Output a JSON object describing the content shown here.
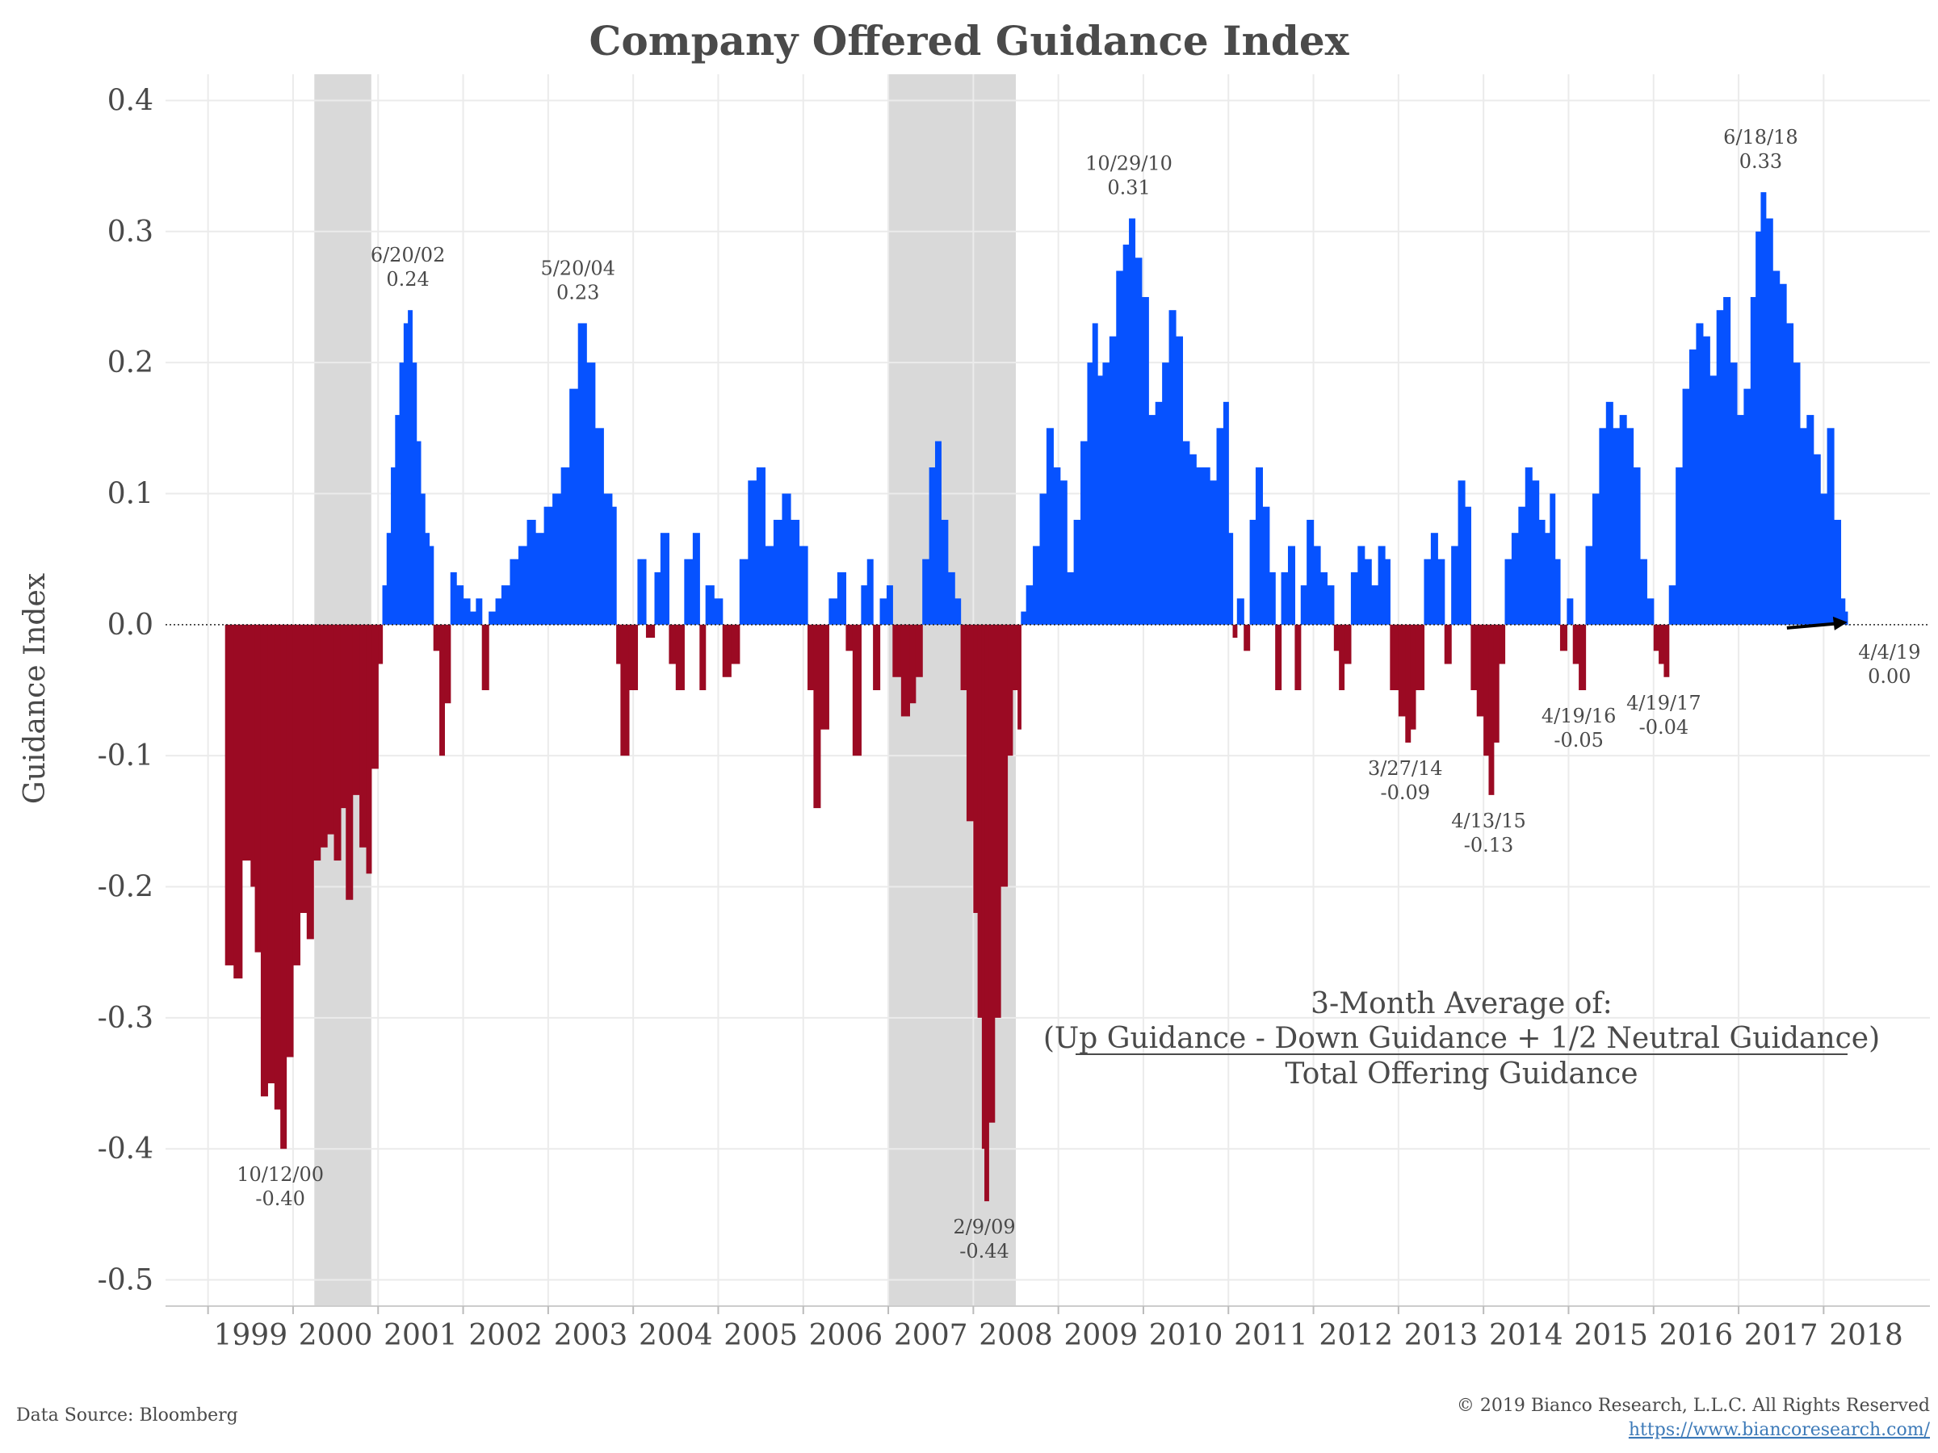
{
  "chart_data": {
    "type": "bar",
    "title": "Company Offered Guidance Index",
    "ylabel": "Guidance Index",
    "xlabel": "",
    "ylim": [
      -0.52,
      0.42
    ],
    "xlim": [
      1998.5,
      2019.25
    ],
    "yticks": [
      0.4,
      0.3,
      0.2,
      0.1,
      0.0,
      -0.1,
      -0.2,
      -0.3,
      -0.4,
      -0.5
    ],
    "ytick_labels": [
      "0.4",
      "0.3",
      "0.2",
      "0.1",
      "0.0",
      "-0.1",
      "-0.2",
      "-0.3",
      "-0.4",
      "-0.5"
    ],
    "xticks": [
      1999,
      2000,
      2001,
      2002,
      2003,
      2004,
      2005,
      2006,
      2007,
      2008,
      2009,
      2010,
      2011,
      2012,
      2013,
      2014,
      2015,
      2016,
      2017,
      2018
    ],
    "xtick_labels": [
      "1999",
      "2000",
      "2001",
      "2002",
      "2003",
      "2004",
      "2005",
      "2006",
      "2007",
      "2008",
      "2009",
      "2010",
      "2011",
      "2012",
      "2013",
      "2014",
      "2015",
      "2016",
      "2017",
      "2018"
    ],
    "grid": true,
    "zero_line": "dotted",
    "colors": {
      "positive": "#0652ff",
      "negative": "#9b0a23",
      "recession": "#d9d9d9"
    },
    "recessions": [
      [
        2000.25,
        2000.92
      ],
      [
        2007.0,
        2008.5
      ]
    ],
    "series": [
      {
        "values": [
          [
            1999.2,
            -0.26
          ],
          [
            1999.3,
            -0.27
          ],
          [
            1999.4,
            -0.18
          ],
          [
            1999.5,
            -0.2
          ],
          [
            1999.55,
            -0.25
          ],
          [
            1999.62,
            -0.36
          ],
          [
            1999.7,
            -0.35
          ],
          [
            1999.78,
            -0.37
          ],
          [
            1999.85,
            -0.4
          ],
          [
            1999.92,
            -0.33
          ],
          [
            2000.0,
            -0.26
          ],
          [
            2000.08,
            -0.22
          ],
          [
            2000.16,
            -0.24
          ],
          [
            2000.24,
            -0.18
          ],
          [
            2000.32,
            -0.17
          ],
          [
            2000.4,
            -0.16
          ],
          [
            2000.48,
            -0.18
          ],
          [
            2000.56,
            -0.14
          ],
          [
            2000.62,
            -0.21
          ],
          [
            2000.7,
            -0.13
          ],
          [
            2000.78,
            -0.17
          ],
          [
            2000.86,
            -0.19
          ],
          [
            2000.92,
            -0.11
          ],
          [
            2001.0,
            -0.03
          ],
          [
            2001.05,
            0.03
          ],
          [
            2001.1,
            0.07
          ],
          [
            2001.15,
            0.12
          ],
          [
            2001.2,
            0.16
          ],
          [
            2001.25,
            0.2
          ],
          [
            2001.3,
            0.23
          ],
          [
            2001.35,
            0.24
          ],
          [
            2001.4,
            0.2
          ],
          [
            2001.45,
            0.14
          ],
          [
            2001.5,
            0.1
          ],
          [
            2001.55,
            0.07
          ],
          [
            2001.6,
            0.06
          ],
          [
            2001.65,
            -0.02
          ],
          [
            2001.72,
            -0.1
          ],
          [
            2001.78,
            -0.06
          ],
          [
            2001.85,
            0.04
          ],
          [
            2001.92,
            0.03
          ],
          [
            2002.0,
            0.02
          ],
          [
            2002.08,
            0.01
          ],
          [
            2002.15,
            0.02
          ],
          [
            2002.22,
            -0.05
          ],
          [
            2002.3,
            0.01
          ],
          [
            2002.38,
            0.02
          ],
          [
            2002.45,
            0.03
          ],
          [
            2002.55,
            0.05
          ],
          [
            2002.65,
            0.06
          ],
          [
            2002.75,
            0.08
          ],
          [
            2002.85,
            0.07
          ],
          [
            2002.95,
            0.09
          ],
          [
            2003.05,
            0.1
          ],
          [
            2003.15,
            0.12
          ],
          [
            2003.25,
            0.18
          ],
          [
            2003.35,
            0.23
          ],
          [
            2003.45,
            0.2
          ],
          [
            2003.55,
            0.15
          ],
          [
            2003.65,
            0.1
          ],
          [
            2003.75,
            0.09
          ],
          [
            2003.8,
            -0.03
          ],
          [
            2003.85,
            -0.1
          ],
          [
            2003.95,
            -0.05
          ],
          [
            2004.05,
            0.05
          ],
          [
            2004.15,
            -0.01
          ],
          [
            2004.25,
            0.04
          ],
          [
            2004.32,
            0.07
          ],
          [
            2004.42,
            -0.03
          ],
          [
            2004.5,
            -0.05
          ],
          [
            2004.6,
            0.05
          ],
          [
            2004.7,
            0.07
          ],
          [
            2004.78,
            -0.05
          ],
          [
            2004.85,
            0.03
          ],
          [
            2004.95,
            0.02
          ],
          [
            2005.05,
            -0.04
          ],
          [
            2005.15,
            -0.03
          ],
          [
            2005.25,
            0.05
          ],
          [
            2005.35,
            0.11
          ],
          [
            2005.45,
            0.12
          ],
          [
            2005.55,
            0.06
          ],
          [
            2005.65,
            0.08
          ],
          [
            2005.75,
            0.1
          ],
          [
            2005.85,
            0.08
          ],
          [
            2005.95,
            0.06
          ],
          [
            2006.05,
            -0.05
          ],
          [
            2006.12,
            -0.14
          ],
          [
            2006.2,
            -0.08
          ],
          [
            2006.3,
            0.02
          ],
          [
            2006.4,
            0.04
          ],
          [
            2006.5,
            -0.02
          ],
          [
            2006.58,
            -0.1
          ],
          [
            2006.68,
            0.03
          ],
          [
            2006.75,
            0.05
          ],
          [
            2006.82,
            -0.05
          ],
          [
            2006.9,
            0.02
          ],
          [
            2006.98,
            0.03
          ],
          [
            2007.05,
            -0.04
          ],
          [
            2007.15,
            -0.07
          ],
          [
            2007.25,
            -0.06
          ],
          [
            2007.32,
            -0.04
          ],
          [
            2007.4,
            0.05
          ],
          [
            2007.48,
            0.12
          ],
          [
            2007.55,
            0.14
          ],
          [
            2007.62,
            0.08
          ],
          [
            2007.7,
            0.04
          ],
          [
            2007.78,
            0.02
          ],
          [
            2007.85,
            -0.05
          ],
          [
            2007.92,
            -0.15
          ],
          [
            2008.0,
            -0.22
          ],
          [
            2008.05,
            -0.3
          ],
          [
            2008.1,
            -0.4
          ],
          [
            2008.13,
            -0.44
          ],
          [
            2008.18,
            -0.38
          ],
          [
            2008.25,
            -0.3
          ],
          [
            2008.32,
            -0.2
          ],
          [
            2008.4,
            -0.1
          ],
          [
            2008.46,
            -0.05
          ],
          [
            2008.52,
            -0.08
          ],
          [
            2008.56,
            0.01
          ],
          [
            2008.62,
            0.03
          ],
          [
            2008.7,
            0.06
          ],
          [
            2008.78,
            0.1
          ],
          [
            2008.86,
            0.15
          ],
          [
            2008.94,
            0.12
          ],
          [
            2009.02,
            0.11
          ],
          [
            2009.1,
            0.04
          ],
          [
            2009.18,
            0.08
          ],
          [
            2009.26,
            0.14
          ],
          [
            2009.34,
            0.2
          ],
          [
            2009.4,
            0.23
          ],
          [
            2009.46,
            0.19
          ],
          [
            2009.52,
            0.2
          ],
          [
            2009.6,
            0.22
          ],
          [
            2009.68,
            0.27
          ],
          [
            2009.76,
            0.29
          ],
          [
            2009.83,
            0.31
          ],
          [
            2009.9,
            0.28
          ],
          [
            2009.98,
            0.25
          ],
          [
            2010.06,
            0.16
          ],
          [
            2010.14,
            0.17
          ],
          [
            2010.22,
            0.2
          ],
          [
            2010.3,
            0.24
          ],
          [
            2010.38,
            0.22
          ],
          [
            2010.46,
            0.14
          ],
          [
            2010.54,
            0.13
          ],
          [
            2010.62,
            0.12
          ],
          [
            2010.7,
            0.12
          ],
          [
            2010.78,
            0.11
          ],
          [
            2010.86,
            0.15
          ],
          [
            2010.94,
            0.17
          ],
          [
            2011.0,
            0.07
          ],
          [
            2011.05,
            -0.01
          ],
          [
            2011.1,
            0.02
          ],
          [
            2011.18,
            -0.02
          ],
          [
            2011.25,
            0.08
          ],
          [
            2011.32,
            0.12
          ],
          [
            2011.4,
            0.09
          ],
          [
            2011.48,
            0.04
          ],
          [
            2011.55,
            -0.05
          ],
          [
            2011.62,
            0.04
          ],
          [
            2011.7,
            0.06
          ],
          [
            2011.78,
            -0.05
          ],
          [
            2011.85,
            0.03
          ],
          [
            2011.92,
            0.08
          ],
          [
            2012.0,
            0.06
          ],
          [
            2012.08,
            0.04
          ],
          [
            2012.16,
            0.03
          ],
          [
            2012.24,
            -0.02
          ],
          [
            2012.3,
            -0.05
          ],
          [
            2012.36,
            -0.03
          ],
          [
            2012.44,
            0.04
          ],
          [
            2012.52,
            0.06
          ],
          [
            2012.6,
            0.05
          ],
          [
            2012.68,
            0.03
          ],
          [
            2012.76,
            0.06
          ],
          [
            2012.84,
            0.05
          ],
          [
            2012.9,
            -0.05
          ],
          [
            2013.0,
            -0.07
          ],
          [
            2013.08,
            -0.09
          ],
          [
            2013.14,
            -0.08
          ],
          [
            2013.2,
            -0.05
          ],
          [
            2013.3,
            0.05
          ],
          [
            2013.38,
            0.07
          ],
          [
            2013.46,
            0.05
          ],
          [
            2013.54,
            -0.03
          ],
          [
            2013.62,
            0.06
          ],
          [
            2013.7,
            0.11
          ],
          [
            2013.78,
            0.09
          ],
          [
            2013.85,
            -0.05
          ],
          [
            2013.92,
            -0.07
          ],
          [
            2014.0,
            -0.1
          ],
          [
            2014.06,
            -0.13
          ],
          [
            2014.12,
            -0.09
          ],
          [
            2014.18,
            -0.03
          ],
          [
            2014.25,
            0.05
          ],
          [
            2014.33,
            0.07
          ],
          [
            2014.41,
            0.09
          ],
          [
            2014.49,
            0.12
          ],
          [
            2014.57,
            0.11
          ],
          [
            2014.65,
            0.08
          ],
          [
            2014.72,
            0.07
          ],
          [
            2014.78,
            0.1
          ],
          [
            2014.84,
            0.05
          ],
          [
            2014.9,
            -0.02
          ],
          [
            2014.98,
            0.02
          ],
          [
            2015.05,
            -0.03
          ],
          [
            2015.12,
            -0.05
          ],
          [
            2015.2,
            0.06
          ],
          [
            2015.28,
            0.1
          ],
          [
            2015.36,
            0.15
          ],
          [
            2015.44,
            0.17
          ],
          [
            2015.52,
            0.15
          ],
          [
            2015.6,
            0.16
          ],
          [
            2015.68,
            0.15
          ],
          [
            2015.76,
            0.12
          ],
          [
            2015.84,
            0.05
          ],
          [
            2015.92,
            0.02
          ],
          [
            2016.0,
            -0.02
          ],
          [
            2016.06,
            -0.03
          ],
          [
            2016.12,
            -0.04
          ],
          [
            2016.18,
            0.03
          ],
          [
            2016.26,
            0.12
          ],
          [
            2016.34,
            0.18
          ],
          [
            2016.42,
            0.21
          ],
          [
            2016.5,
            0.23
          ],
          [
            2016.58,
            0.22
          ],
          [
            2016.66,
            0.19
          ],
          [
            2016.74,
            0.24
          ],
          [
            2016.82,
            0.25
          ],
          [
            2016.9,
            0.2
          ],
          [
            2016.98,
            0.16
          ],
          [
            2017.06,
            0.18
          ],
          [
            2017.14,
            0.25
          ],
          [
            2017.2,
            0.3
          ],
          [
            2017.26,
            0.33
          ],
          [
            2017.32,
            0.31
          ],
          [
            2017.4,
            0.27
          ],
          [
            2017.48,
            0.26
          ],
          [
            2017.56,
            0.23
          ],
          [
            2017.64,
            0.2
          ],
          [
            2017.72,
            0.15
          ],
          [
            2017.8,
            0.16
          ],
          [
            2017.88,
            0.13
          ],
          [
            2017.96,
            0.1
          ],
          [
            2018.04,
            0.15
          ],
          [
            2018.12,
            0.08
          ],
          [
            2018.2,
            0.02
          ],
          [
            2018.25,
            0.01
          ],
          [
            2018.28,
            0.0
          ]
        ]
      }
    ],
    "annotations": [
      {
        "date": "10/12/00",
        "value": "-0.40",
        "x": 1999.85,
        "y": -0.4,
        "color": "negative"
      },
      {
        "date": "6/20/02",
        "value": "0.24",
        "x": 2001.35,
        "y": 0.24,
        "color": "positive"
      },
      {
        "date": "5/20/04",
        "value": "0.23",
        "x": 2003.35,
        "y": 0.23,
        "color": "positive"
      },
      {
        "date": "2/9/09",
        "value": "-0.44",
        "x": 2008.13,
        "y": -0.44,
        "color": "negative"
      },
      {
        "date": "10/29/10",
        "value": "0.31",
        "x": 2009.83,
        "y": 0.31,
        "color": "positive"
      },
      {
        "date": "3/27/14",
        "value": "-0.09",
        "x": 2013.08,
        "y": -0.09,
        "color": "negative"
      },
      {
        "date": "4/13/15",
        "value": "-0.13",
        "x": 2014.06,
        "y": -0.13,
        "color": "negative"
      },
      {
        "date": "4/19/16",
        "value": "-0.05",
        "x": 2015.12,
        "y": -0.05,
        "color": "negative"
      },
      {
        "date": "4/19/17",
        "value": "-0.04",
        "x": 2016.12,
        "y": -0.04,
        "color": "negative"
      },
      {
        "date": "6/18/18",
        "value": "0.33",
        "x": 2017.26,
        "y": 0.33,
        "color": "positive"
      },
      {
        "date": "4/4/19",
        "value": "0.00",
        "x": 2018.28,
        "y": 0.0,
        "color": "positive",
        "arrow": true
      }
    ],
    "formula": {
      "line1": "3-Month Average of:",
      "line2": "(Up Guidance - Down Guidance + 1/2 Neutral Guidance)",
      "line3": "Total Offering Guidance"
    }
  },
  "footer": {
    "source": "Data Source: Bloomberg",
    "copyright": "© 2019 Bianco Research, L.L.C. All Rights Reserved",
    "url": "https://www.biancoresearch.com/"
  }
}
